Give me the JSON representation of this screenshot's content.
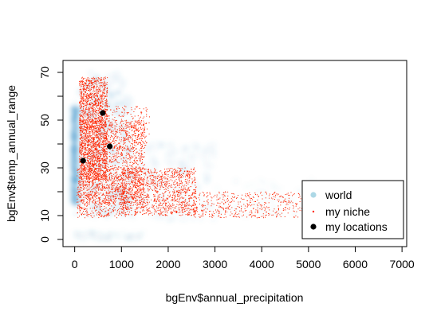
{
  "chart_data": {
    "type": "scatter",
    "title": "",
    "xlabel": "bgEnv$annual_precipitation",
    "ylabel": "bgEnv$temp_annual_range",
    "xlim": [
      -250,
      7100
    ],
    "ylim": [
      -3,
      75
    ],
    "x_ticks": [
      0,
      1000,
      2000,
      3000,
      4000,
      5000,
      6000,
      7000
    ],
    "y_ticks": [
      0,
      10,
      30,
      50,
      70
    ],
    "y_minor_ticks": [
      20,
      40,
      60
    ],
    "grid": false,
    "legend": {
      "position": "bottom-right",
      "entries": [
        {
          "label": "world",
          "color": "#add8e6",
          "symbol": "filled-circle"
        },
        {
          "label": "my niche",
          "color": "#ff2400",
          "symbol": "small-dot"
        },
        {
          "label": "my locations",
          "color": "#000000",
          "symbol": "filled-circle"
        }
      ]
    },
    "series": [
      {
        "name": "world",
        "kind": "density",
        "color": "#3a8fc5",
        "density_regions": [
          {
            "x": [
              0,
              1200
            ],
            "y": [
              10,
              70
            ],
            "weight": 1.0
          },
          {
            "x": [
              1200,
              3000
            ],
            "y": [
              8,
              40
            ],
            "weight": 0.6
          },
          {
            "x": [
              3000,
              5500
            ],
            "y": [
              10,
              25
            ],
            "weight": 0.3
          },
          {
            "x": [
              -60,
              60
            ],
            "y": [
              15,
              55
            ],
            "weight": 1.0
          },
          {
            "x": [
              0,
              1500
            ],
            "y": [
              0,
              3
            ],
            "weight": 0.3
          }
        ]
      },
      {
        "name": "my niche",
        "kind": "points",
        "color": "#ff2400",
        "point_regions": [
          {
            "x": [
              100,
              700
            ],
            "y": [
              25,
              68
            ],
            "count": 1800
          },
          {
            "x": [
              100,
              1500
            ],
            "y": [
              15,
              50
            ],
            "count": 1500
          },
          {
            "x": [
              1000,
              2600
            ],
            "y": [
              10,
              30
            ],
            "count": 1200
          },
          {
            "x": [
              2500,
              5000
            ],
            "y": [
              9,
              20
            ],
            "count": 500
          },
          {
            "x": [
              50,
              1100
            ],
            "y": [
              9,
              30
            ],
            "count": 600
          },
          {
            "x": [
              300,
              1600
            ],
            "y": [
              38,
              56
            ],
            "count": 300
          }
        ]
      },
      {
        "name": "my locations",
        "kind": "points",
        "color": "#000000",
        "points": [
          {
            "x": 600,
            "y": 53
          },
          {
            "x": 750,
            "y": 39
          },
          {
            "x": 180,
            "y": 33
          }
        ]
      }
    ]
  }
}
